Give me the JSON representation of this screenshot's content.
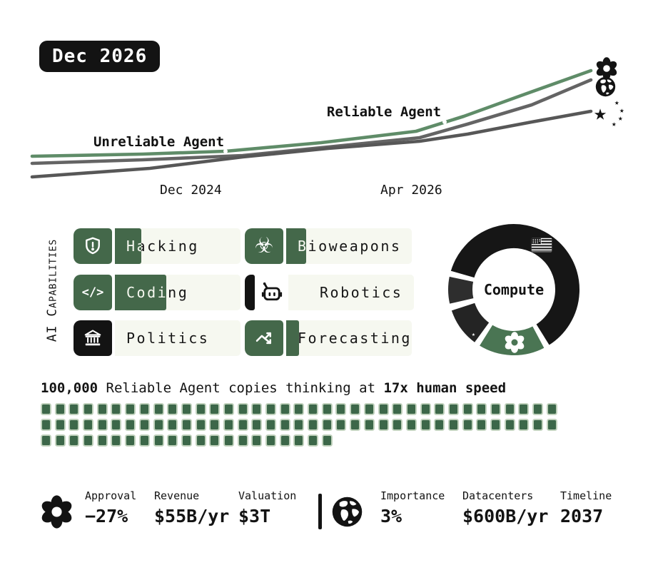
{
  "badge": {
    "label": "Dec 2026"
  },
  "colors": {
    "capability_green": "#44684a",
    "line_green": "#5f8c68",
    "line_gray": "#646464",
    "line_dark_gray": "#575757",
    "row_background": "#f6f8f0",
    "donut_green": "#4a7553",
    "donut_black": "#161616",
    "square_green": "#3c6749",
    "ink": "#131313"
  },
  "chart_data": [
    {
      "id": "capability-trend",
      "type": "line",
      "x_tick_labels": [
        "Dec 2024",
        "Apr 2026"
      ],
      "annotations": [
        {
          "text": "Unreliable Agent",
          "milestone_x": 316
        },
        {
          "text": "Reliable Agent",
          "milestone_x": 623
        }
      ],
      "series": [
        {
          "name": "world",
          "icon": "globe-icon",
          "color": "#646464",
          "points": [
            [
              45,
              229
            ],
            [
              200,
              224
            ],
            [
              340,
              218
            ],
            [
              460,
              206
            ],
            [
              588,
              193
            ],
            [
              655,
              174
            ],
            [
              745,
              147
            ],
            [
              828,
              112
            ]
          ]
        },
        {
          "name": "deepcent-stars",
          "icon": "star-cluster-icon",
          "color": "#575757",
          "points": [
            [
              45,
              248
            ],
            [
              210,
              236
            ],
            [
              340,
              220
            ],
            [
              460,
              208
            ],
            [
              588,
              198
            ],
            [
              655,
              188
            ],
            [
              745,
              171
            ],
            [
              828,
              156
            ]
          ]
        },
        {
          "name": "openbrain",
          "icon": "openbrain-spiral-icon",
          "color": "#5f8c68",
          "points": [
            [
              45,
              219
            ],
            [
              200,
              216
            ],
            [
              316,
              212
            ],
            [
              450,
              200
            ],
            [
              583,
              184
            ],
            [
              650,
              163
            ],
            [
              730,
              134
            ],
            [
              828,
              99
            ]
          ]
        }
      ],
      "markers": [
        [
          316,
          212
        ],
        [
          623,
          171
        ]
      ],
      "grid": false,
      "legend": "icons-at-line-ends"
    },
    {
      "id": "compute-share",
      "type": "pie",
      "center_label": "Compute",
      "segments": [
        {
          "name": "us-flag-share",
          "color": "#161616",
          "start_deg": 286,
          "end_deg": 508,
          "share_pct": 62,
          "icon": "us-flag-icon"
        },
        {
          "name": "openbrain-share",
          "color": "#4a7553",
          "start_deg": 152,
          "end_deg": 212,
          "share_pct": 17,
          "icon": "openbrain-spiral-icon"
        },
        {
          "name": "deepcent-share",
          "color": "#242424",
          "start_deg": 216,
          "end_deg": 252,
          "share_pct": 10,
          "icon": "star-cluster-icon"
        },
        {
          "name": "other-share",
          "color": "#2e2e2e",
          "start_deg": 257,
          "end_deg": 282,
          "share_pct": 7,
          "icon": null
        }
      ]
    },
    {
      "id": "agent-copies",
      "type": "waffle",
      "heading": [
        {
          "text": "100,000",
          "bold": true
        },
        {
          "text": " Reliable Agent copies thinking at ",
          "bold": false
        },
        {
          "text": "17x human speed",
          "bold": true
        }
      ],
      "rows": [
        37,
        37,
        21
      ],
      "square_color": "#3c6749"
    }
  ],
  "capabilities": {
    "section_label": "AI Capabilities",
    "items": [
      {
        "label": "Hacking",
        "icon": "shield-alert-icon",
        "box": "green",
        "fill_pct": 21
      },
      {
        "label": "Bioweapons",
        "icon": "biohazard-icon",
        "box": "green",
        "fill_pct": 16
      },
      {
        "label": "Coding",
        "icon": "code-icon",
        "box": "green",
        "fill_pct": 41
      },
      {
        "label": "Robotics",
        "icon": "robot-icon",
        "box": "sliver",
        "fill_pct": 0
      },
      {
        "label": "Politics",
        "icon": "bank-icon",
        "box": "black",
        "fill_pct": 0
      },
      {
        "label": "Forecasting",
        "icon": "trend-icon",
        "box": "green",
        "fill_pct": 10
      }
    ]
  },
  "stats": {
    "left": {
      "icon": "openbrain-spiral-icon",
      "items": [
        {
          "label": "Approval",
          "value": "−27%"
        },
        {
          "label": "Revenue",
          "value": "$55B/yr"
        },
        {
          "label": "Valuation",
          "value": "$3T"
        }
      ]
    },
    "right": {
      "icon": "globe-icon",
      "items": [
        {
          "label": "Importance",
          "value": "3%"
        },
        {
          "label": "Datacenters",
          "value": "$600B/yr"
        },
        {
          "label": "Timeline",
          "value": "2037"
        }
      ]
    }
  }
}
